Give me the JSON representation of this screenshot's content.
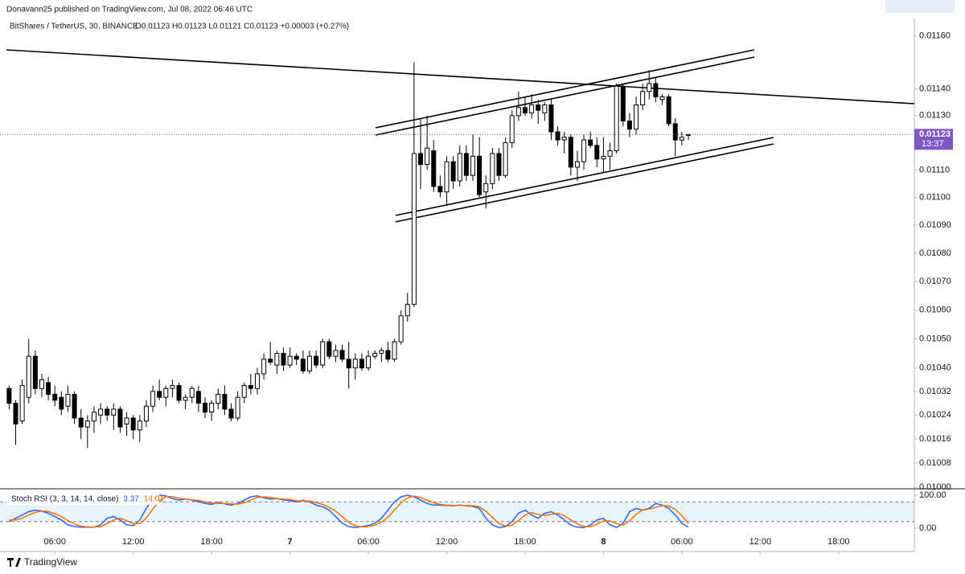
{
  "header": {
    "published": "Donavann25 published on TradingView.com, Jul 08, 2022 06:46 UTC"
  },
  "footer": {
    "brand": "TradingView"
  },
  "chart_data": [
    {
      "type": "candlestick",
      "title": "BitShares / TetherUS, 30, BINANCE",
      "ohlc_legend": "O0.01123 H0.01123 L0.01121 C0.01123 +0.00003 (+0.27%)",
      "log_scale": true,
      "up_color": "#ffffff",
      "down_color": "#000000",
      "edge_color": "#000000",
      "xlim": [
        1.8,
        71.8
      ],
      "xticks": [
        {
          "value": 6,
          "label": "06:00"
        },
        {
          "value": 12,
          "label": "12:00"
        },
        {
          "value": 18,
          "label": "18:00"
        },
        {
          "value": 24,
          "label": "7"
        },
        {
          "value": 30,
          "label": "06:00"
        },
        {
          "value": 36,
          "label": "12:00"
        },
        {
          "value": 42,
          "label": "18:00"
        },
        {
          "value": 48,
          "label": "8"
        },
        {
          "value": 54,
          "label": "06:00"
        },
        {
          "value": 60,
          "label": "12:00"
        },
        {
          "value": 66,
          "label": "18:00"
        }
      ],
      "ylim": [
        0.01,
        0.01167
      ],
      "yticks": [
        {
          "value": 0.0116,
          "label": "0.01160"
        },
        {
          "value": 0.0114,
          "label": "0.01140"
        },
        {
          "value": 0.0113,
          "label": "0.01130"
        },
        {
          "value": 0.0111,
          "label": "0.01110"
        },
        {
          "value": 0.011,
          "label": "0.01100"
        },
        {
          "value": 0.0109,
          "label": "0.01090"
        },
        {
          "value": 0.0108,
          "label": "0.01080"
        },
        {
          "value": 0.0107,
          "label": "0.01070"
        },
        {
          "value": 0.0106,
          "label": "0.01060"
        },
        {
          "value": 0.0105,
          "label": "0.01050"
        },
        {
          "value": 0.0104,
          "label": "0.01040"
        },
        {
          "value": 0.01032,
          "label": "0.01032"
        },
        {
          "value": 0.01024,
          "label": "0.01024"
        },
        {
          "value": 0.01016,
          "label": "0.01016"
        },
        {
          "value": 0.01008,
          "label": "0.01008"
        },
        {
          "value": 0.01,
          "label": "0.01000"
        }
      ],
      "high": [
        0.01034,
        0.01029,
        0.01036,
        0.0105,
        0.01046,
        0.01038,
        0.01037,
        0.01034,
        0.01032,
        0.01034,
        0.01032,
        0.01026,
        0.01024,
        0.01027,
        0.01028,
        0.01027,
        0.01028,
        0.01027,
        0.01025,
        0.01024,
        0.01024,
        0.01029,
        0.01034,
        0.01036,
        0.01034,
        0.01036,
        0.01035,
        0.01031,
        0.01034,
        0.01034,
        0.0103,
        0.01029,
        0.01033,
        0.01034,
        0.01028,
        0.01032,
        0.01035,
        0.01038,
        0.0104,
        0.01045,
        0.01049,
        0.01046,
        0.01047,
        0.01047,
        0.01045,
        0.01046,
        0.01046,
        0.01046,
        0.0105,
        0.0105,
        0.01048,
        0.01048,
        0.01049,
        0.01045,
        0.01045,
        0.01046,
        0.01046,
        0.01047,
        0.01049,
        0.0105,
        0.0106,
        0.01066,
        0.0115,
        0.01129,
        0.0113,
        0.01121,
        0.01108,
        0.01115,
        0.01115,
        0.01119,
        0.01119,
        0.01123,
        0.01122,
        0.01108,
        0.01118,
        0.01118,
        0.01122,
        0.01132,
        0.01139,
        0.01137,
        0.01138,
        0.01136,
        0.01135,
        0.01136,
        0.01126,
        0.01124,
        0.01123,
        0.01117,
        0.01123,
        0.01124,
        0.01122,
        0.01122,
        0.0112,
        0.01142,
        0.01142,
        0.01131,
        0.01137,
        0.01142,
        0.01147,
        0.01144,
        0.01138,
        0.01138,
        0.01129,
        0.01124,
        0.01123
      ],
      "low": [
        0.01026,
        0.01014,
        0.01021,
        0.01028,
        0.01031,
        0.0103,
        0.01029,
        0.01027,
        0.01024,
        0.01025,
        0.01021,
        0.01016,
        0.01013,
        0.01018,
        0.01021,
        0.01022,
        0.01019,
        0.01018,
        0.01017,
        0.01016,
        0.01015,
        0.0102,
        0.01025,
        0.01029,
        0.01027,
        0.0103,
        0.01028,
        0.01026,
        0.01028,
        0.01025,
        0.01023,
        0.01022,
        0.01026,
        0.01024,
        0.01022,
        0.01022,
        0.01028,
        0.01031,
        0.01031,
        0.01036,
        0.01041,
        0.01038,
        0.01039,
        0.0104,
        0.01041,
        0.01038,
        0.01038,
        0.0104,
        0.0104,
        0.01043,
        0.01042,
        0.01042,
        0.01033,
        0.01036,
        0.01039,
        0.01039,
        0.01043,
        0.01042,
        0.01042,
        0.01042,
        0.01048,
        0.01056,
        0.01061,
        0.01103,
        0.0111,
        0.01102,
        0.011,
        0.01097,
        0.01103,
        0.01104,
        0.01106,
        0.01106,
        0.011,
        0.01096,
        0.01103,
        0.01106,
        0.01107,
        0.01118,
        0.01128,
        0.0113,
        0.01129,
        0.01127,
        0.01128,
        0.01121,
        0.01119,
        0.01116,
        0.01108,
        0.01106,
        0.0111,
        0.01118,
        0.01111,
        0.01109,
        0.0111,
        0.01116,
        0.01126,
        0.01122,
        0.01123,
        0.01132,
        0.01136,
        0.01135,
        0.01134,
        0.01126,
        0.01115,
        0.01119,
        0.01121
      ],
      "last": {
        "value": 0.01123,
        "value_label": "0.01123",
        "countdown": "13:37",
        "color": "#7e57c2"
      },
      "x": [
        2.5,
        3,
        3.5,
        4,
        4.5,
        5,
        5.5,
        6,
        6.5,
        7,
        7.5,
        8,
        8.5,
        9,
        9.5,
        10,
        10.5,
        11,
        11.5,
        12,
        12.5,
        13,
        13.5,
        14,
        14.5,
        15,
        15.5,
        16,
        16.5,
        17,
        17.5,
        18,
        18.5,
        19,
        19.5,
        20,
        20.5,
        21,
        21.5,
        22,
        22.5,
        23,
        23.5,
        24,
        24.5,
        25,
        25.5,
        26,
        26.5,
        27,
        27.5,
        28,
        28.5,
        29,
        29.5,
        30,
        30.5,
        31,
        31.5,
        32,
        32.5,
        33,
        33.5,
        34,
        34.5,
        35,
        35.5,
        36,
        36.5,
        37,
        37.5,
        38,
        38.5,
        39,
        39.5,
        40,
        40.5,
        41,
        41.5,
        42,
        42.5,
        43,
        43.5,
        44,
        44.5,
        45,
        45.5,
        46,
        46.5,
        47,
        47.5,
        48,
        48.5,
        49,
        49.5,
        50,
        50.5,
        51,
        51.5,
        52,
        52.5,
        53,
        53.5,
        54,
        54.5
      ],
      "open": [
        0.01033,
        0.01028,
        0.01022,
        0.0103,
        0.01044,
        0.01033,
        0.01035,
        0.01031,
        0.0103,
        0.01027,
        0.01031,
        0.01023,
        0.0102,
        0.01022,
        0.01024,
        0.01026,
        0.01024,
        0.01026,
        0.01021,
        0.01023,
        0.01019,
        0.01022,
        0.01027,
        0.01032,
        0.0103,
        0.01033,
        0.01034,
        0.01029,
        0.0103,
        0.01032,
        0.01028,
        0.01025,
        0.01028,
        0.01031,
        0.01026,
        0.01023,
        0.0103,
        0.01034,
        0.01033,
        0.01038,
        0.01043,
        0.01041,
        0.01045,
        0.01041,
        0.01044,
        0.01043,
        0.01039,
        0.01044,
        0.01041,
        0.01049,
        0.01044,
        0.01046,
        0.01043,
        0.0104,
        0.01043,
        0.0104,
        0.01044,
        0.01045,
        0.01046,
        0.01043,
        0.01049,
        0.01058,
        0.01062,
        0.01116,
        0.01112,
        0.01117,
        0.01104,
        0.01102,
        0.01113,
        0.01106,
        0.01116,
        0.01108,
        0.01115,
        0.01102,
        0.01105,
        0.01116,
        0.01108,
        0.0112,
        0.0113,
        0.01133,
        0.01131,
        0.01134,
        0.01131,
        0.01134,
        0.01124,
        0.01121,
        0.01122,
        0.01111,
        0.01113,
        0.01121,
        0.01119,
        0.01114,
        0.01115,
        0.01117,
        0.01141,
        0.01128,
        0.01125,
        0.01134,
        0.01139,
        0.01142,
        0.01136,
        0.01137,
        0.01127,
        0.01121,
        0.01123
      ],
      "close": [
        0.01028,
        0.01021,
        0.01034,
        0.01044,
        0.01033,
        0.01036,
        0.01031,
        0.01029,
        0.01026,
        0.01031,
        0.01023,
        0.0102,
        0.01022,
        0.01025,
        0.01026,
        0.01024,
        0.01026,
        0.0102,
        0.01023,
        0.01019,
        0.01022,
        0.01027,
        0.01032,
        0.0103,
        0.01033,
        0.01034,
        0.01029,
        0.0103,
        0.01033,
        0.01028,
        0.01025,
        0.01028,
        0.01031,
        0.01026,
        0.01023,
        0.0103,
        0.01034,
        0.01033,
        0.01038,
        0.01043,
        0.01042,
        0.01045,
        0.01041,
        0.01044,
        0.01043,
        0.01039,
        0.01044,
        0.01041,
        0.01049,
        0.01044,
        0.01046,
        0.01043,
        0.0104,
        0.01043,
        0.0104,
        0.01044,
        0.01045,
        0.01046,
        0.01043,
        0.01049,
        0.01058,
        0.01062,
        0.01116,
        0.01112,
        0.01118,
        0.01104,
        0.01102,
        0.01113,
        0.01106,
        0.01116,
        0.01108,
        0.01115,
        0.01101,
        0.01105,
        0.01116,
        0.01108,
        0.0112,
        0.0113,
        0.01133,
        0.01131,
        0.01134,
        0.01132,
        0.01134,
        0.01124,
        0.01121,
        0.01122,
        0.01111,
        0.01113,
        0.01121,
        0.01119,
        0.01114,
        0.01115,
        0.01117,
        0.01141,
        0.01128,
        0.01125,
        0.01134,
        0.01139,
        0.01142,
        0.01137,
        0.01137,
        0.01127,
        0.01121,
        0.01122,
        0.01123
      ]
    },
    {
      "type": "line",
      "title": "Stoch RSI (3, 3, 14, 14, close)",
      "ylim": [
        0,
        100
      ],
      "yticks": [
        {
          "value": 100,
          "label": "100.00"
        },
        {
          "value": 0,
          "label": "0.00"
        }
      ],
      "bands": [
        20,
        80
      ],
      "band_color": "#2196f3",
      "series": [
        {
          "color": "#2962ff",
          "values": [
            20,
            30,
            40,
            50,
            55,
            52,
            45,
            35,
            25,
            10,
            5,
            3,
            3,
            3,
            10,
            30,
            35,
            25,
            10,
            8,
            25,
            60,
            90,
            100,
            98,
            90,
            85,
            88,
            85,
            80,
            75,
            72,
            78,
            74,
            70,
            75,
            85,
            95,
            98,
            92,
            88,
            90,
            86,
            84,
            80,
            85,
            80,
            70,
            65,
            55,
            35,
            15,
            5,
            2,
            5,
            8,
            15,
            30,
            55,
            80,
            95,
            100,
            95,
            85,
            75,
            70,
            70,
            69,
            68,
            70,
            68,
            66,
            60,
            30,
            10,
            2,
            5,
            20,
            45,
            55,
            40,
            30,
            45,
            50,
            40,
            25,
            10,
            3,
            2,
            10,
            25,
            30,
            10,
            2,
            15,
            50,
            60,
            55,
            60,
            75,
            70,
            60,
            40,
            15,
            3.37
          ]
        },
        {
          "color": "#ff6d00",
          "values": [
            25,
            25,
            30,
            40,
            48,
            52,
            51,
            44,
            35,
            23,
            13,
            6,
            4,
            3,
            5,
            14,
            25,
            30,
            23,
            14,
            14,
            31,
            58,
            83,
            96,
            96,
            91,
            88,
            86,
            84,
            80,
            76,
            75,
            75,
            74,
            73,
            77,
            85,
            93,
            95,
            93,
            90,
            88,
            87,
            83,
            83,
            82,
            78,
            72,
            63,
            52,
            35,
            18,
            7,
            4,
            5,
            9,
            18,
            33,
            55,
            77,
            92,
            97,
            93,
            85,
            77,
            72,
            70,
            69,
            69,
            69,
            68,
            65,
            52,
            33,
            14,
            6,
            9,
            23,
            40,
            47,
            42,
            38,
            42,
            45,
            38,
            25,
            13,
            5,
            5,
            12,
            22,
            22,
            14,
            9,
            22,
            42,
            55,
            58,
            63,
            68,
            68,
            57,
            38,
            14.01
          ]
        }
      ]
    }
  ]
}
